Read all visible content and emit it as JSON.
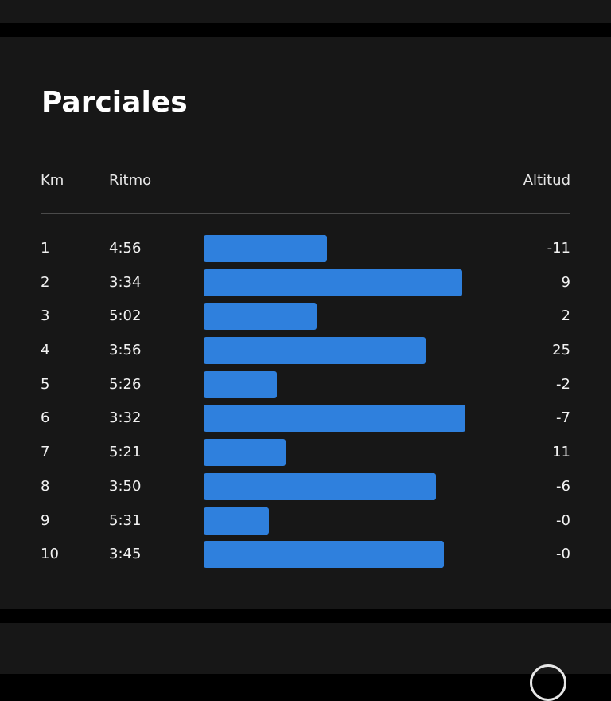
{
  "splits": {
    "title": "Parciales",
    "headers": {
      "km": "Km",
      "pace": "Ritmo",
      "altitude": "Altitud"
    },
    "rows": [
      {
        "km": "1",
        "pace": "4:56",
        "pace_seconds": 296,
        "altitude": "-11"
      },
      {
        "km": "2",
        "pace": "3:34",
        "pace_seconds": 214,
        "altitude": "9"
      },
      {
        "km": "3",
        "pace": "5:02",
        "pace_seconds": 302,
        "altitude": "2"
      },
      {
        "km": "4",
        "pace": "3:56",
        "pace_seconds": 236,
        "altitude": "25"
      },
      {
        "km": "5",
        "pace": "5:26",
        "pace_seconds": 326,
        "altitude": "-2"
      },
      {
        "km": "6",
        "pace": "3:32",
        "pace_seconds": 212,
        "altitude": "-7"
      },
      {
        "km": "7",
        "pace": "5:21",
        "pace_seconds": 321,
        "altitude": "11"
      },
      {
        "km": "8",
        "pace": "3:50",
        "pace_seconds": 230,
        "altitude": "-6"
      },
      {
        "km": "9",
        "pace": "5:31",
        "pace_seconds": 331,
        "altitude": "-0"
      },
      {
        "km": "10",
        "pace": "3:45",
        "pace_seconds": 225,
        "altitude": "-0"
      }
    ],
    "bar_color": "#2f80dd"
  },
  "next_section": {
    "icon": "info-icon"
  }
}
